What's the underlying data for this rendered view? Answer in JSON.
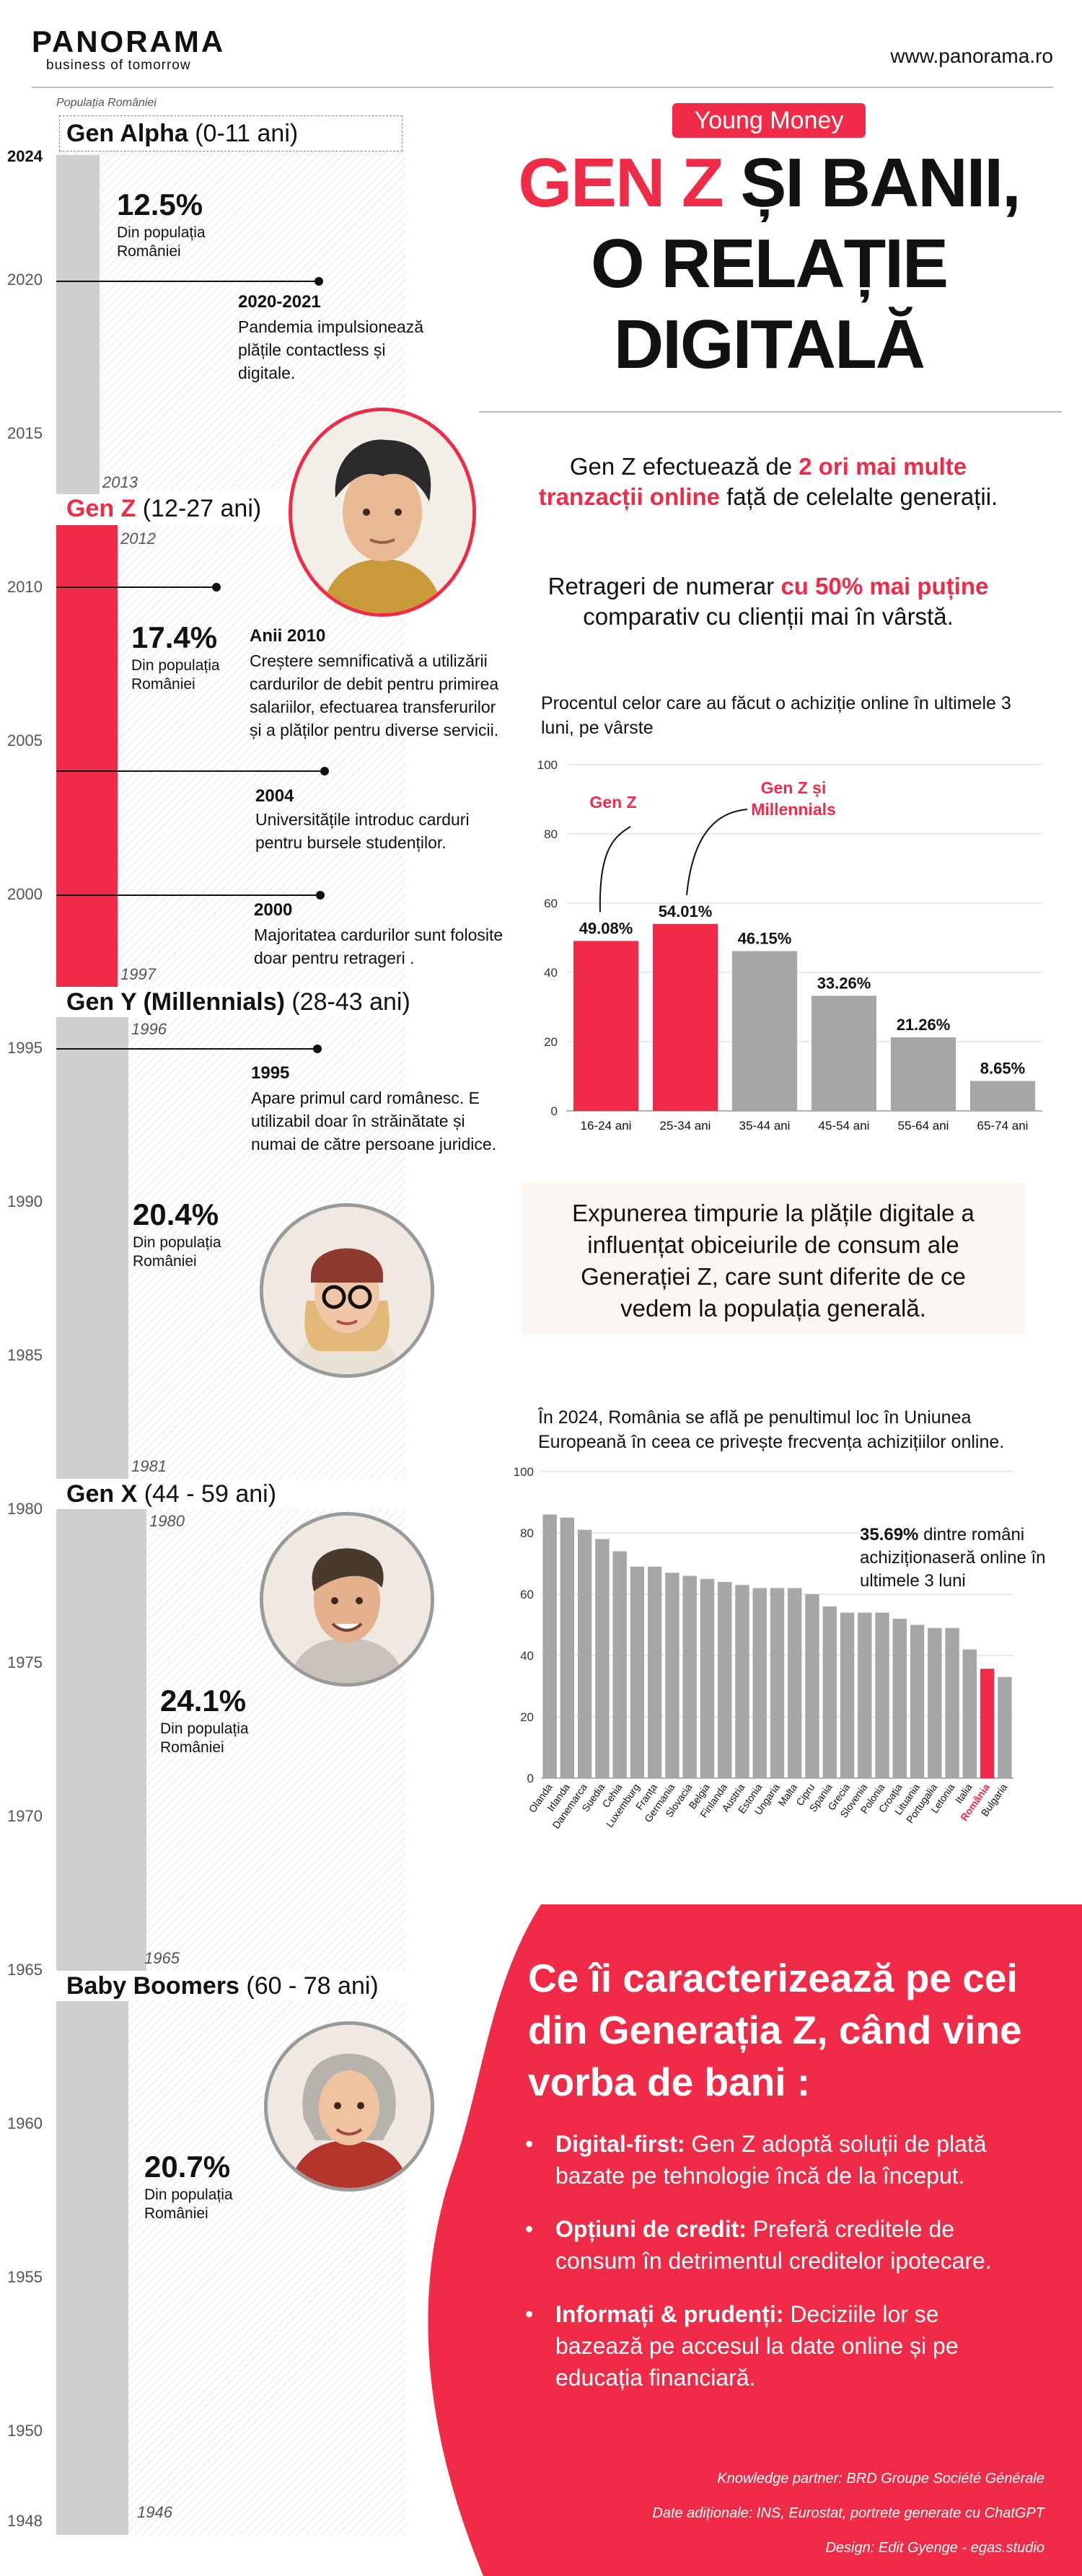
{
  "header": {
    "logo": "PANORAMA",
    "tagline": "business of tomorrow",
    "website": "www.panorama.ro"
  },
  "timeline": {
    "caption": "Populația României",
    "years": [
      "2024",
      "2020",
      "2015",
      "2010",
      "2005",
      "2000",
      "1995",
      "1990",
      "1985",
      "1980",
      "1975",
      "1970",
      "1965",
      "1960",
      "1955",
      "1950",
      "1948"
    ],
    "generations": [
      {
        "name": "Gen Alpha",
        "age": "(0-11 ani)",
        "start": "2013",
        "end": "",
        "share": 0.125,
        "pct": "12.5%",
        "pct_label": "Din populația României"
      },
      {
        "name": "Gen Z",
        "age": "(12-27 ani)",
        "start": "1997",
        "end": "2012",
        "share": 0.174,
        "pct": "17.4%",
        "pct_label": "Din populația României"
      },
      {
        "name": "Gen Y (Millennials)",
        "age": "(28-43 ani)",
        "start": "1981",
        "end": "1996",
        "share": 0.204,
        "pct": "20.4%",
        "pct_label": "Din populația României"
      },
      {
        "name": "Gen X",
        "age": "(44 - 59 ani)",
        "start": "1965",
        "end": "1980",
        "share": 0.241,
        "pct": "24.1%",
        "pct_label": "Din populația României"
      },
      {
        "name": "Baby Boomers",
        "age": "(60 - 78 ani)",
        "start": "1946",
        "end": "",
        "share": 0.207,
        "pct": "20.7%",
        "pct_label": "Din populația României"
      }
    ],
    "events": [
      {
        "year": "2020-2021",
        "text": "Pandemia impulsionează plățile contactless și digitale."
      },
      {
        "year": "Anii 2010",
        "text": "Creștere semnificativă a utilizării cardurilor de debit pentru primirea salariilor, efectuarea transferurilor și a plăților pentru diverse servicii."
      },
      {
        "year": "2004",
        "text": "Universitățile introduc carduri pentru bursele studenților."
      },
      {
        "year": "2000",
        "text": "Majoritatea cardurilor sunt folosite doar pentru retrageri ."
      },
      {
        "year": "1995",
        "text": "Apare primul card românesc. E utilizabil doar în străinătate și numai de către persoane juridice."
      }
    ]
  },
  "hero": {
    "kicker": "Young Money",
    "title_red": "GEN Z",
    "title_rest": " ȘI BANII,",
    "title_line2": "O RELAȚIE",
    "title_line3": "DIGITALĂ"
  },
  "intro": {
    "p1_a": "Gen Z efectuează de ",
    "p1_b": "2 ori mai multe tranzacții online",
    "p1_c": " față de celelalte generații.",
    "p2_a": "Retrageri de numerar ",
    "p2_b": "cu 50% mai puține",
    "p2_c": " comparativ cu clienții mai în vârstă."
  },
  "callout": "Expunerea timpurie la plățile digitale a influențat obiceiurile de consum ale Generației Z, care sunt diferite de ce vedem la populația generală.",
  "chart_data": [
    {
      "type": "bar",
      "title": "Procentul celor care au făcut o achiziție online în ultimele 3 luni, pe vârste",
      "categories": [
        "16-24 ani",
        "25-34 ani",
        "35-44 ani",
        "45-54 ani",
        "55-64 ani",
        "65-74 ani"
      ],
      "values": [
        49.08,
        54.01,
        46.15,
        33.26,
        21.26,
        8.65
      ],
      "value_labels": [
        "49.08%",
        "54.01%",
        "46.15%",
        "33.26%",
        "21.26%",
        "8.65%"
      ],
      "highlight_color": "#ef2b47",
      "base_color": "#a6a6a6",
      "highlighted": [
        0,
        1
      ],
      "annotations": [
        "Gen Z",
        "Gen Z și Millennials"
      ],
      "ylim": [
        0,
        100
      ],
      "yticks": [
        0,
        20,
        40,
        60,
        80,
        100
      ],
      "grid": true
    },
    {
      "type": "bar",
      "title": "În 2024, România se află pe penultimul loc în Uniunea Europeană în ceea ce privește frecvența achizițiilor online.",
      "categories": [
        "Olanda",
        "Irlanda",
        "Danemarca",
        "Suedia",
        "Cehia",
        "Luxemburg",
        "Franța",
        "Germania",
        "Slovacia",
        "Belgia",
        "Finlanda",
        "Austria",
        "Estonia",
        "Ungaria",
        "Malta",
        "Cipru",
        "Spania",
        "Grecia",
        "Slovenia",
        "Polonia",
        "Croația",
        "Lituania",
        "Portugalia",
        "Letonia",
        "Italia",
        "România",
        "Bulgaria"
      ],
      "values": [
        86,
        85,
        81,
        78,
        74,
        69,
        69,
        67,
        66,
        65,
        64,
        63,
        62,
        62,
        62,
        60,
        56,
        54,
        54,
        54,
        52,
        50,
        49,
        49,
        42,
        35.69,
        33
      ],
      "highlighted": [
        25
      ],
      "highlight_color": "#ef2b47",
      "base_color": "#a6a6a6",
      "annotation_bold": "35.69%",
      "annotation_text": " dintre români achiziționaseră online în ultimele 3 luni",
      "ylim": [
        0,
        100
      ],
      "yticks": [
        0,
        20,
        40,
        60,
        80,
        100
      ],
      "grid": true
    }
  ],
  "traits": {
    "title": "Ce îi caracterizează pe cei din Generația Z, când vine vorba de bani :",
    "items": [
      {
        "label": "Digital-first:",
        "text": " Gen Z adoptă soluții de plată bazate pe tehnologie încă de la început."
      },
      {
        "label": "Opțiuni de credit:",
        "text": " Preferă creditele de consum în detrimentul creditelor ipotecare."
      },
      {
        "label": "Informați & prudenți:",
        "text": " Deciziile lor se bazează pe accesul la date online și pe educația financiară."
      }
    ]
  },
  "credits": [
    "Knowledge partner: BRD Groupe Société Générale",
    "Date adiționale: INS, Eurostat, portrete generate cu ChatGPT",
    "Design: Edit Gyenge - egas.studio"
  ],
  "colors": {
    "accent": "#ef2b47",
    "grey": "#cfcfcf"
  }
}
